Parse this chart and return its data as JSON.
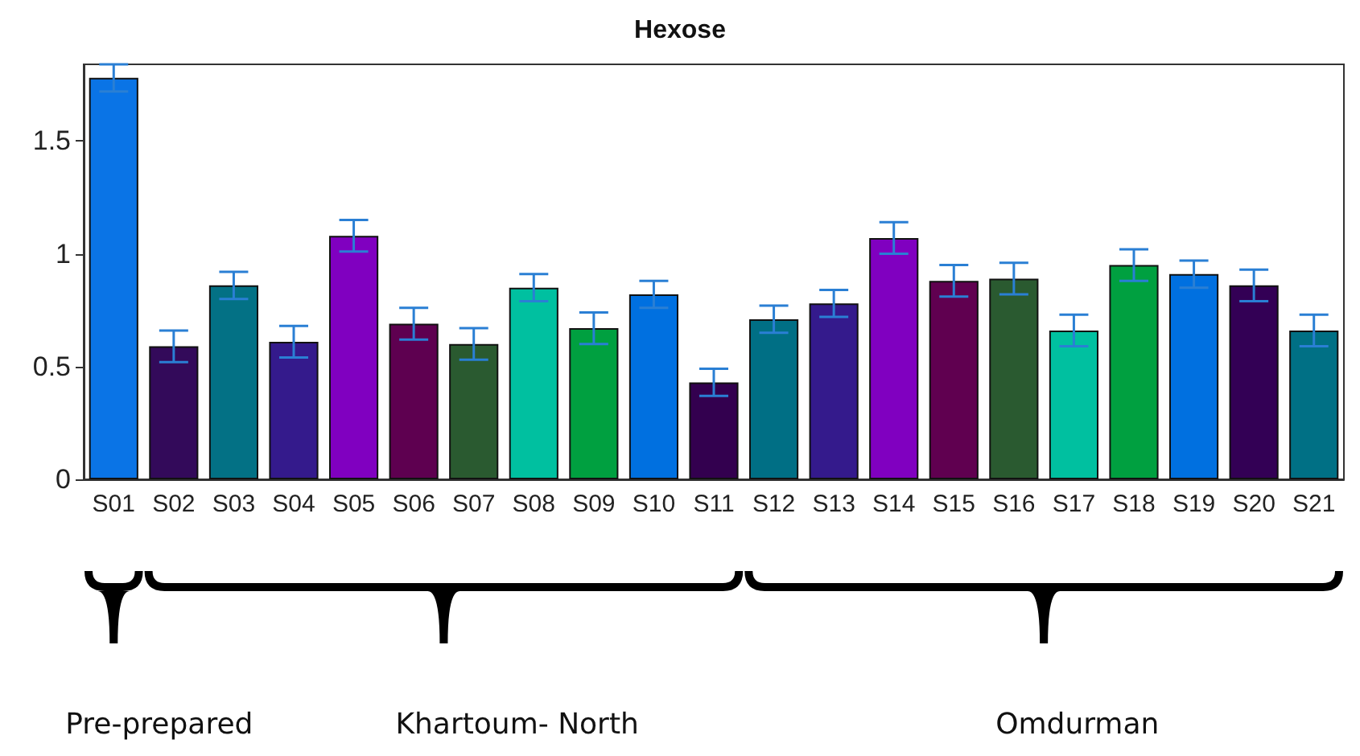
{
  "chart_data": {
    "type": "bar",
    "title": "Hexose",
    "categories": [
      "S01",
      "S02",
      "S03",
      "S04",
      "S05",
      "S06",
      "S07",
      "S08",
      "S09",
      "S10",
      "S11",
      "S12",
      "S13",
      "S14",
      "S15",
      "S16",
      "S17",
      "S18",
      "S19",
      "S20",
      "S21"
    ],
    "values": [
      1.78,
      0.59,
      0.86,
      0.61,
      1.08,
      0.69,
      0.6,
      0.85,
      0.67,
      0.82,
      0.43,
      0.71,
      0.78,
      1.07,
      0.88,
      0.89,
      0.66,
      0.95,
      0.91,
      0.86,
      0.66
    ],
    "errors": [
      0.06,
      0.07,
      0.06,
      0.07,
      0.07,
      0.07,
      0.07,
      0.06,
      0.07,
      0.06,
      0.06,
      0.06,
      0.06,
      0.07,
      0.07,
      0.07,
      0.07,
      0.07,
      0.06,
      0.07,
      0.07
    ],
    "colors": [
      "#0a74e6",
      "#330a5a",
      "#037185",
      "#341a8c",
      "#8000c0",
      "#5e0050",
      "#2a5a30",
      "#00c0a0",
      "#00a040",
      "#0070e0",
      "#33004f",
      "#006f85",
      "#341a8c",
      "#8000c0",
      "#600050",
      "#2a5a30",
      "#00c0a0",
      "#00a040",
      "#0070e0",
      "#330055",
      "#007085"
    ],
    "ylim": [
      0,
      1.84
    ],
    "yticks": [
      0,
      0.5,
      1,
      1.5
    ],
    "grid": false,
    "annotations": [
      "Pre-prepared",
      "Khartoum- North",
      "Omdurman"
    ]
  }
}
